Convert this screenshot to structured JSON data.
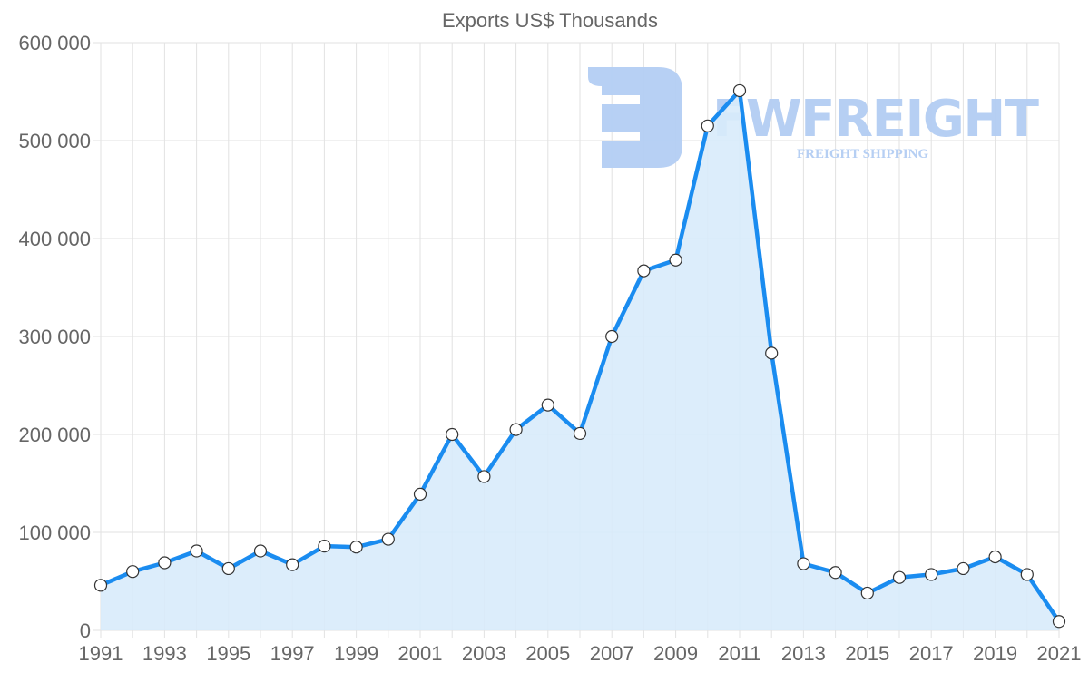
{
  "chart_data": {
    "type": "line",
    "title": "Exports US$ Thousands",
    "xlabel": "",
    "ylabel": "",
    "ylim": [
      0,
      600000
    ],
    "yticks": [
      "0",
      "100 000",
      "200 000",
      "300 000",
      "400 000",
      "500 000",
      "600 000"
    ],
    "x": [
      1991,
      1992,
      1993,
      1994,
      1995,
      1996,
      1997,
      1998,
      1999,
      2000,
      2001,
      2002,
      2003,
      2004,
      2005,
      2006,
      2007,
      2008,
      2009,
      2010,
      2011,
      2012,
      2013,
      2014,
      2015,
      2016,
      2017,
      2018,
      2019,
      2020,
      2021
    ],
    "xtick_labels": [
      "1991",
      "1993",
      "1995",
      "1997",
      "1999",
      "2001",
      "2003",
      "2005",
      "2007",
      "2009",
      "2011",
      "2013",
      "2015",
      "2017",
      "2019",
      "2021"
    ],
    "series": [
      {
        "name": "Exports",
        "values": [
          46000,
          60000,
          69000,
          81000,
          63000,
          81000,
          67000,
          86000,
          85000,
          93000,
          139000,
          200000,
          157000,
          205000,
          230000,
          201000,
          300000,
          367000,
          378000,
          515000,
          551000,
          283000,
          68000,
          59000,
          38000,
          54000,
          57000,
          63000,
          75000,
          57000,
          9000
        ]
      }
    ],
    "grid": true,
    "fill": true,
    "colors": {
      "line": "#1a8cf0",
      "fill": "#d8ebfb",
      "grid": "#e2e2e2",
      "watermark": "#b3cdf3"
    }
  },
  "watermark": {
    "brand": "FWFREIGHT",
    "tagline": "FREIGHT SHIPPING"
  }
}
